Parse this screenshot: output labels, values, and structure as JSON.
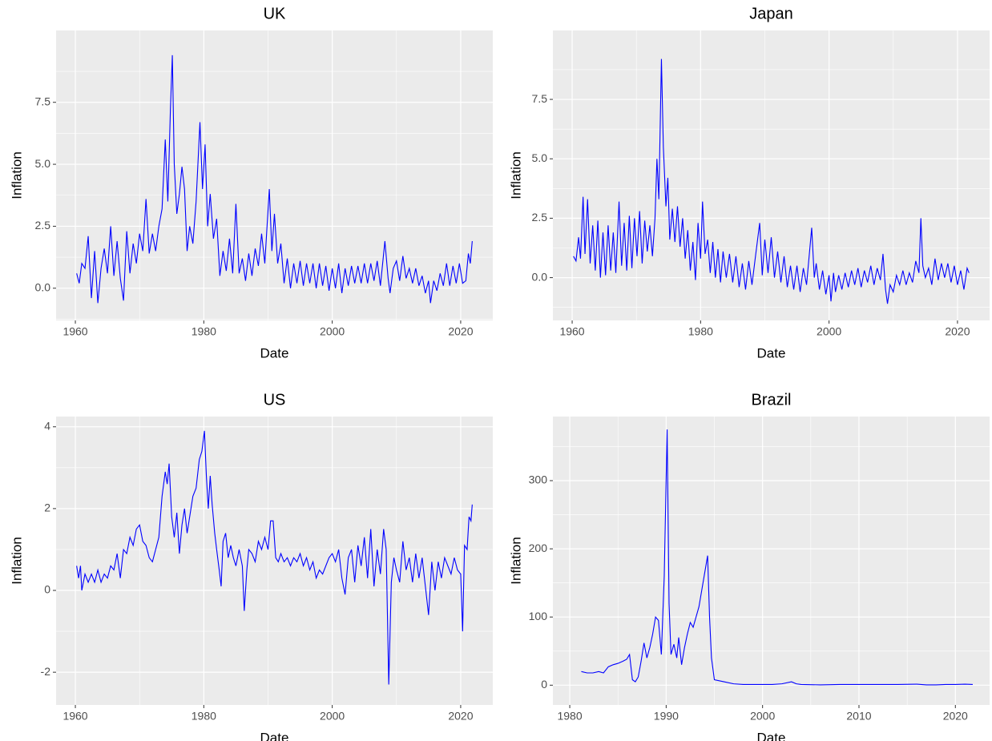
{
  "chart_data": [
    {
      "type": "line",
      "title": "UK",
      "xlabel": "Date",
      "ylabel": "Inflation",
      "color": "#0000ff",
      "grid": true,
      "xlim": [
        1957,
        2025
      ],
      "ylim": [
        -1.3,
        10.4
      ],
      "xticks": [
        1960,
        1980,
        2000,
        2020
      ],
      "yticks": [
        {
          "value": 0,
          "label": "0.0"
        },
        {
          "value": 2.5,
          "label": "2.5"
        },
        {
          "value": 5,
          "label": "5.0"
        },
        {
          "value": 7.5,
          "label": "7.5"
        }
      ],
      "x": [
        1960.2,
        1960.6,
        1961,
        1961.5,
        1962,
        1962.5,
        1963,
        1963.5,
        1964,
        1964.5,
        1965,
        1965.5,
        1966,
        1966.5,
        1967,
        1967.5,
        1968,
        1968.5,
        1969,
        1969.5,
        1970,
        1970.5,
        1971,
        1971.5,
        1972,
        1972.5,
        1973,
        1973.5,
        1974,
        1974.4,
        1974.8,
        1975.1,
        1975.4,
        1975.8,
        1976.2,
        1976.6,
        1977,
        1977.4,
        1977.8,
        1978.3,
        1978.8,
        1979.4,
        1979.8,
        1980.2,
        1980.6,
        1981,
        1981.5,
        1982,
        1982.5,
        1983,
        1983.5,
        1984,
        1984.5,
        1985,
        1985.5,
        1986,
        1986.5,
        1987,
        1987.5,
        1988,
        1988.5,
        1989,
        1989.5,
        1990.2,
        1990.6,
        1991,
        1991.5,
        1992,
        1992.5,
        1993,
        1993.5,
        1994,
        1994.5,
        1995,
        1995.5,
        1996,
        1996.5,
        1997,
        1997.5,
        1998,
        1998.5,
        1999,
        1999.5,
        2000,
        2000.5,
        2001,
        2001.5,
        2002,
        2002.5,
        2003,
        2003.5,
        2004,
        2004.5,
        2005,
        2005.5,
        2006,
        2006.5,
        2007,
        2007.5,
        2008.2,
        2008.7,
        2009,
        2009.5,
        2010,
        2010.5,
        2011,
        2011.5,
        2012,
        2012.5,
        2013,
        2013.5,
        2014,
        2014.5,
        2015,
        2015.3,
        2015.8,
        2016.3,
        2016.8,
        2017.3,
        2017.8,
        2018.3,
        2018.8,
        2019.3,
        2019.8,
        2020.3,
        2020.8,
        2021.2,
        2021.5,
        2021.8
      ],
      "values": [
        0.6,
        0.2,
        1.0,
        0.8,
        2.1,
        -0.4,
        1.5,
        -0.6,
        0.8,
        1.6,
        0.6,
        2.5,
        0.5,
        1.9,
        0.4,
        -0.5,
        2.3,
        0.6,
        1.8,
        1.0,
        2.2,
        1.5,
        3.6,
        1.4,
        2.2,
        1.5,
        2.5,
        3.2,
        6.0,
        3.5,
        7.2,
        9.4,
        5.0,
        3.0,
        3.8,
        4.9,
        4.0,
        1.5,
        2.5,
        1.8,
        3.5,
        6.7,
        4.0,
        5.8,
        2.5,
        3.8,
        2.0,
        2.8,
        0.5,
        1.5,
        0.7,
        2.0,
        0.6,
        3.4,
        0.6,
        1.2,
        0.3,
        1.4,
        0.5,
        1.6,
        0.9,
        2.2,
        1.0,
        4.0,
        1.5,
        3.0,
        1.0,
        1.8,
        0.2,
        1.2,
        0.0,
        1.0,
        0.2,
        1.1,
        0.1,
        1.0,
        0.2,
        1.0,
        0.0,
        1.0,
        0.1,
        0.9,
        -0.1,
        0.8,
        0.0,
        1.0,
        -0.2,
        0.8,
        0.1,
        0.9,
        0.2,
        0.9,
        0.2,
        1.0,
        0.2,
        1.0,
        0.3,
        1.1,
        0.1,
        1.9,
        0.4,
        -0.2,
        0.8,
        1.1,
        0.3,
        1.3,
        0.4,
        0.8,
        0.2,
        0.8,
        0.1,
        0.5,
        -0.2,
        0.3,
        -0.6,
        0.3,
        -0.1,
        0.6,
        0.1,
        1.0,
        0.1,
        0.9,
        0.2,
        1.0,
        0.2,
        0.3,
        1.4,
        1.0,
        1.9
      ]
    },
    {
      "type": "line",
      "title": "Japan",
      "xlabel": "Date",
      "ylabel": "Inflation",
      "color": "#0000ff",
      "grid": true,
      "xlim": [
        1957,
        2025
      ],
      "ylim": [
        -1.8,
        10.4
      ],
      "xticks": [
        1960,
        1980,
        2000,
        2020
      ],
      "yticks": [
        {
          "value": 0,
          "label": "0.0"
        },
        {
          "value": 2.5,
          "label": "2.5"
        },
        {
          "value": 5,
          "label": "5.0"
        },
        {
          "value": 7.5,
          "label": "7.5"
        }
      ],
      "x": [
        1960.2,
        1960.6,
        1961,
        1961.3,
        1961.7,
        1962,
        1962.4,
        1962.8,
        1963.2,
        1963.6,
        1964,
        1964.4,
        1964.8,
        1965.2,
        1965.6,
        1966,
        1966.4,
        1966.8,
        1967.3,
        1967.7,
        1968.1,
        1968.5,
        1968.9,
        1969.3,
        1969.7,
        1970.1,
        1970.5,
        1970.9,
        1971.3,
        1971.7,
        1972.1,
        1972.5,
        1972.9,
        1973.2,
        1973.5,
        1973.9,
        1974.2,
        1974.6,
        1974.9,
        1975.2,
        1975.6,
        1976,
        1976.4,
        1976.8,
        1977.2,
        1977.6,
        1978,
        1978.4,
        1978.8,
        1979.2,
        1979.6,
        1980,
        1980.3,
        1980.7,
        1981.1,
        1981.5,
        1981.9,
        1982.3,
        1982.7,
        1983.1,
        1983.5,
        1984,
        1984.5,
        1985,
        1985.5,
        1986,
        1986.5,
        1987,
        1987.5,
        1988,
        1988.5,
        1989.2,
        1989.6,
        1990,
        1990.5,
        1991,
        1991.5,
        1992,
        1992.5,
        1993,
        1993.5,
        1994,
        1994.5,
        1995,
        1995.5,
        1996,
        1996.5,
        1997.3,
        1997.7,
        1998,
        1998.5,
        1999,
        1999.5,
        2000,
        2000.3,
        2000.7,
        2001,
        2001.5,
        2002,
        2002.5,
        2003,
        2003.5,
        2004,
        2004.5,
        2005,
        2005.5,
        2006,
        2006.5,
        2007,
        2007.5,
        2008,
        2008.4,
        2008.8,
        2009.1,
        2009.5,
        2010,
        2010.5,
        2011,
        2011.5,
        2012,
        2012.5,
        2013,
        2013.5,
        2014,
        2014.3,
        2014.6,
        2015,
        2015.5,
        2016,
        2016.5,
        2017,
        2017.5,
        2018,
        2018.5,
        2019,
        2019.5,
        2020,
        2020.5,
        2021,
        2021.5,
        2021.8
      ],
      "values": [
        0.9,
        0.7,
        1.7,
        0.8,
        3.4,
        1.0,
        3.3,
        0.6,
        2.2,
        0.3,
        2.4,
        0.0,
        1.9,
        0.1,
        2.2,
        0.3,
        1.9,
        0.2,
        3.2,
        0.5,
        2.3,
        0.3,
        2.6,
        0.4,
        2.5,
        0.9,
        2.8,
        0.6,
        2.4,
        1.1,
        2.2,
        0.9,
        2.5,
        5.0,
        3.3,
        9.2,
        5.5,
        3.0,
        4.2,
        1.6,
        2.9,
        1.5,
        3.0,
        1.3,
        2.5,
        0.8,
        2.0,
        0.3,
        1.5,
        -0.1,
        2.3,
        0.8,
        3.2,
        1.0,
        1.6,
        0.2,
        1.5,
        0.0,
        1.2,
        -0.2,
        1.1,
        0.0,
        1.0,
        -0.2,
        0.9,
        -0.4,
        0.6,
        -0.5,
        0.7,
        -0.3,
        0.8,
        2.3,
        0.1,
        1.6,
        0.2,
        1.7,
        0.0,
        1.1,
        -0.2,
        0.9,
        -0.4,
        0.5,
        -0.5,
        0.5,
        -0.6,
        0.4,
        -0.3,
        2.1,
        0.0,
        0.6,
        -0.5,
        0.3,
        -0.7,
        0.1,
        -1.0,
        0.2,
        -0.6,
        0.1,
        -0.5,
        0.2,
        -0.4,
        0.3,
        -0.3,
        0.4,
        -0.4,
        0.3,
        -0.2,
        0.5,
        -0.3,
        0.4,
        -0.1,
        1.0,
        -0.5,
        -1.1,
        -0.3,
        -0.6,
        0.1,
        -0.3,
        0.3,
        -0.3,
        0.2,
        -0.2,
        0.7,
        0.2,
        2.5,
        0.5,
        0.0,
        0.4,
        -0.3,
        0.8,
        -0.1,
        0.6,
        0.0,
        0.6,
        -0.2,
        0.5,
        -0.3,
        0.3,
        -0.5,
        0.4,
        0.2
      ]
    },
    {
      "type": "line",
      "title": "US",
      "xlabel": "Date",
      "ylabel": "Inflation",
      "color": "#0000ff",
      "grid": true,
      "xlim": [
        1957,
        2025
      ],
      "ylim": [
        -2.8,
        4.25
      ],
      "xticks": [
        1960,
        1980,
        2000,
        2020
      ],
      "yticks": [
        -2,
        0,
        2,
        4
      ],
      "x": [
        1960.2,
        1960.5,
        1960.8,
        1961,
        1961.5,
        1962,
        1962.5,
        1963,
        1963.5,
        1964,
        1964.5,
        1965,
        1965.5,
        1966,
        1966.5,
        1967,
        1967.5,
        1968,
        1968.5,
        1969,
        1969.5,
        1970,
        1970.5,
        1971,
        1971.5,
        1972,
        1972.5,
        1973,
        1973.5,
        1974,
        1974.3,
        1974.6,
        1975,
        1975.4,
        1975.8,
        1976.2,
        1976.6,
        1977,
        1977.4,
        1977.8,
        1978.3,
        1978.8,
        1979.3,
        1979.7,
        1980.1,
        1980.4,
        1980.7,
        1981,
        1981.3,
        1981.7,
        1982,
        1982.4,
        1982.7,
        1983,
        1983.4,
        1983.8,
        1984.2,
        1984.6,
        1985,
        1985.5,
        1986,
        1986.3,
        1986.7,
        1987,
        1987.5,
        1988,
        1988.5,
        1989,
        1989.5,
        1990,
        1990.4,
        1990.8,
        1991.2,
        1991.6,
        1992,
        1992.5,
        1993,
        1993.5,
        1994,
        1994.5,
        1995,
        1995.5,
        1996,
        1996.5,
        1997,
        1997.5,
        1998,
        1998.5,
        1999,
        1999.5,
        2000,
        2000.5,
        2001,
        2001.5,
        2002,
        2002.5,
        2003,
        2003.5,
        2004,
        2004.5,
        2005,
        2005.5,
        2006,
        2006.5,
        2007,
        2007.5,
        2008,
        2008.4,
        2008.8,
        2009.2,
        2009.6,
        2010,
        2010.5,
        2011,
        2011.5,
        2012,
        2012.5,
        2013,
        2013.5,
        2014,
        2014.5,
        2015,
        2015.5,
        2016,
        2016.5,
        2017,
        2017.5,
        2018,
        2018.5,
        2019,
        2019.5,
        2020,
        2020.3,
        2020.6,
        2021,
        2021.3,
        2021.6,
        2021.8
      ],
      "values": [
        0.6,
        0.3,
        0.6,
        0.0,
        0.4,
        0.2,
        0.4,
        0.2,
        0.5,
        0.2,
        0.4,
        0.3,
        0.6,
        0.5,
        0.9,
        0.3,
        1.0,
        0.9,
        1.3,
        1.1,
        1.5,
        1.6,
        1.2,
        1.1,
        0.8,
        0.7,
        1.0,
        1.3,
        2.3,
        2.9,
        2.6,
        3.1,
        1.8,
        1.3,
        1.9,
        0.9,
        1.6,
        2.0,
        1.4,
        1.8,
        2.3,
        2.5,
        3.2,
        3.4,
        3.9,
        2.8,
        2.0,
        2.8,
        2.1,
        1.4,
        1.0,
        0.5,
        0.1,
        1.2,
        1.4,
        0.8,
        1.1,
        0.8,
        0.6,
        1.0,
        0.6,
        -0.5,
        0.5,
        1.0,
        0.9,
        0.7,
        1.2,
        1.0,
        1.3,
        1.0,
        1.7,
        1.7,
        0.8,
        0.7,
        0.9,
        0.7,
        0.8,
        0.6,
        0.8,
        0.7,
        0.9,
        0.6,
        0.8,
        0.5,
        0.7,
        0.3,
        0.5,
        0.4,
        0.6,
        0.8,
        0.9,
        0.7,
        1.0,
        0.3,
        -0.1,
        0.8,
        1.0,
        0.2,
        1.1,
        0.6,
        1.3,
        0.3,
        1.5,
        0.1,
        1.0,
        0.4,
        1.5,
        1.0,
        -2.3,
        0.2,
        0.8,
        0.5,
        0.2,
        1.2,
        0.5,
        0.8,
        0.2,
        0.9,
        0.3,
        0.8,
        0.1,
        -0.6,
        0.7,
        0.0,
        0.7,
        0.3,
        0.8,
        0.6,
        0.4,
        0.8,
        0.5,
        0.4,
        -1.0,
        1.1,
        1.0,
        1.8,
        1.7,
        2.1
      ]
    },
    {
      "type": "line",
      "title": "Brazil",
      "xlabel": "Date",
      "ylabel": "Inflation",
      "color": "#0000ff",
      "grid": true,
      "xlim": [
        1978.25,
        2023.55
      ],
      "ylim": [
        -29,
        394
      ],
      "xticks": [
        1980,
        1990,
        2000,
        2010,
        2020
      ],
      "yticks": [
        0,
        100,
        200,
        300
      ],
      "x": [
        1981.2,
        1981.8,
        1982.4,
        1983,
        1983.5,
        1984,
        1984.5,
        1985,
        1985.5,
        1985.9,
        1986.2,
        1986.5,
        1986.8,
        1987.1,
        1987.4,
        1987.7,
        1988,
        1988.3,
        1988.6,
        1988.9,
        1989.2,
        1989.5,
        1989.8,
        1990.1,
        1990.3,
        1990.5,
        1990.8,
        1991.1,
        1991.3,
        1991.6,
        1991.9,
        1992.2,
        1992.5,
        1992.8,
        1993.1,
        1993.4,
        1993.7,
        1994,
        1994.3,
        1994.5,
        1994.7,
        1995,
        1996,
        1997,
        1998,
        1999,
        2000,
        2001,
        2002,
        2003,
        2003.5,
        2004,
        2006,
        2008,
        2010,
        2012,
        2014,
        2016,
        2017,
        2018,
        2019,
        2020,
        2021,
        2021.8
      ],
      "values": [
        20,
        18,
        18,
        20,
        18,
        27,
        30,
        32,
        35,
        38,
        45,
        8,
        5,
        12,
        35,
        62,
        40,
        55,
        75,
        100,
        95,
        45,
        160,
        375,
        120,
        45,
        60,
        40,
        70,
        30,
        55,
        75,
        92,
        85,
        100,
        115,
        140,
        165,
        190,
        100,
        40,
        8,
        5,
        2,
        1,
        1,
        1,
        1,
        2,
        5,
        2,
        1,
        0.5,
        1,
        1,
        1,
        1,
        1.5,
        0.5,
        0.5,
        1,
        1,
        1.5,
        1
      ]
    }
  ]
}
